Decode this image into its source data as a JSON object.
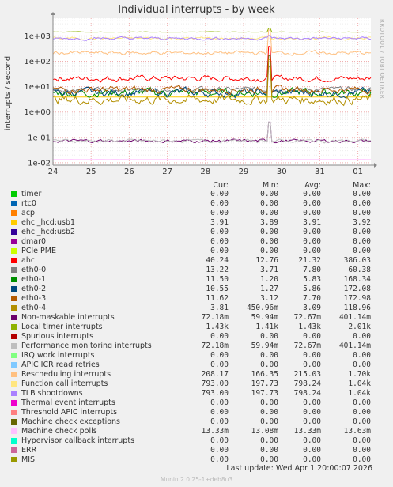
{
  "chart_data": {
    "type": "line",
    "title": "Individual interrupts - by week",
    "ylabel": "interrupts / second",
    "xlabel": "",
    "y_scale": "log",
    "ylim": [
      0.008,
      5000
    ],
    "y_ticks": [
      "1e-02",
      "1e-01",
      "1e+00",
      "1e+01",
      "1e+02",
      "1e+03"
    ],
    "x_ticks": [
      "24",
      "25",
      "26",
      "27",
      "28",
      "29",
      "30",
      "31",
      "01"
    ],
    "grid": true,
    "columns": [
      "Cur:",
      "Min:",
      "Avg:",
      "Max:"
    ],
    "series": [
      {
        "name": "timer",
        "color": "#00cc00",
        "values": [
          "0.00",
          "0.00",
          "0.00",
          "0.00"
        ]
      },
      {
        "name": "rtc0",
        "color": "#0066b3",
        "values": [
          "0.00",
          "0.00",
          "0.00",
          "0.00"
        ]
      },
      {
        "name": "acpi",
        "color": "#ff8000",
        "values": [
          "0.00",
          "0.00",
          "0.00",
          "0.00"
        ]
      },
      {
        "name": "ehci_hcd:usb1",
        "color": "#ffcc00",
        "values": [
          "3.91",
          "3.89",
          "3.91",
          "3.92"
        ]
      },
      {
        "name": "ehci_hcd:usb2",
        "color": "#330099",
        "values": [
          "0.00",
          "0.00",
          "0.00",
          "0.00"
        ]
      },
      {
        "name": "dmar0",
        "color": "#990099",
        "values": [
          "0.00",
          "0.00",
          "0.00",
          "0.00"
        ]
      },
      {
        "name": "PCIe PME",
        "color": "#ccff00",
        "values": [
          "0.00",
          "0.00",
          "0.00",
          "0.00"
        ]
      },
      {
        "name": "ahci",
        "color": "#ff0000",
        "values": [
          "40.24",
          "12.76",
          "21.32",
          "386.03"
        ]
      },
      {
        "name": "eth0-0",
        "color": "#808080",
        "values": [
          "13.22",
          "3.71",
          "7.80",
          "60.38"
        ]
      },
      {
        "name": "eth0-1",
        "color": "#008f00",
        "values": [
          "11.50",
          "1.20",
          "5.83",
          "168.34"
        ]
      },
      {
        "name": "eth0-2",
        "color": "#00487d",
        "values": [
          "10.55",
          "1.27",
          "5.86",
          "172.08"
        ]
      },
      {
        "name": "eth0-3",
        "color": "#b35a00",
        "values": [
          "11.62",
          "3.12",
          "7.70",
          "172.98"
        ]
      },
      {
        "name": "eth0-4",
        "color": "#b38f00",
        "values": [
          "3.81",
          "450.96m",
          "3.09",
          "118.96"
        ]
      },
      {
        "name": "Non-maskable interrupts",
        "color": "#6b006b",
        "values": [
          "72.18m",
          "59.94m",
          "72.67m",
          "401.14m"
        ]
      },
      {
        "name": "Local timer interrupts",
        "color": "#8fb300",
        "values": [
          "1.43k",
          "1.41k",
          "1.43k",
          "2.01k"
        ]
      },
      {
        "name": "Spurious interrupts",
        "color": "#b30000",
        "values": [
          "0.00",
          "0.00",
          "0.00",
          "0.00"
        ]
      },
      {
        "name": "Performance monitoring interrupts",
        "color": "#bebebe",
        "values": [
          "72.18m",
          "59.94m",
          "72.67m",
          "401.14m"
        ]
      },
      {
        "name": "IRQ work interrupts",
        "color": "#80ff80",
        "values": [
          "0.00",
          "0.00",
          "0.00",
          "0.00"
        ]
      },
      {
        "name": "APIC ICR read retries",
        "color": "#80c9ff",
        "values": [
          "0.00",
          "0.00",
          "0.00",
          "0.00"
        ]
      },
      {
        "name": "Rescheduling interrupts",
        "color": "#ffc080",
        "values": [
          "208.17",
          "166.35",
          "215.03",
          "1.70k"
        ]
      },
      {
        "name": "Function call interrupts",
        "color": "#ffe680",
        "values": [
          "793.00",
          "197.73",
          "798.24",
          "1.04k"
        ]
      },
      {
        "name": "TLB shootdowns",
        "color": "#aa80ff",
        "values": [
          "793.00",
          "197.73",
          "798.24",
          "1.04k"
        ]
      },
      {
        "name": "Thermal event interrupts",
        "color": "#ee00cc",
        "values": [
          "0.00",
          "0.00",
          "0.00",
          "0.00"
        ]
      },
      {
        "name": "Threshold APIC interrupts",
        "color": "#ff8080",
        "values": [
          "0.00",
          "0.00",
          "0.00",
          "0.00"
        ]
      },
      {
        "name": "Machine check exceptions",
        "color": "#666600",
        "values": [
          "0.00",
          "0.00",
          "0.00",
          "0.00"
        ]
      },
      {
        "name": "Machine check polls",
        "color": "#ffbfff",
        "values": [
          "13.33m",
          "13.08m",
          "13.33m",
          "13.63m"
        ]
      },
      {
        "name": "Hypervisor callback interrupts",
        "color": "#00ffcc",
        "values": [
          "0.00",
          "0.00",
          "0.00",
          "0.00"
        ]
      },
      {
        "name": "ERR",
        "color": "#cc6699",
        "values": [
          "0.00",
          "0.00",
          "0.00",
          "0.00"
        ]
      },
      {
        "name": "MIS",
        "color": "#999900",
        "values": [
          "0.00",
          "0.00",
          "0.00",
          "0.00"
        ]
      }
    ]
  },
  "side_text": "RRDTOOL / TOBI OETIKER",
  "last_update": "Last update:  Wed Apr  1 20:00:07 2026",
  "footer": "Munin 2.0.25-1+deb8u3"
}
